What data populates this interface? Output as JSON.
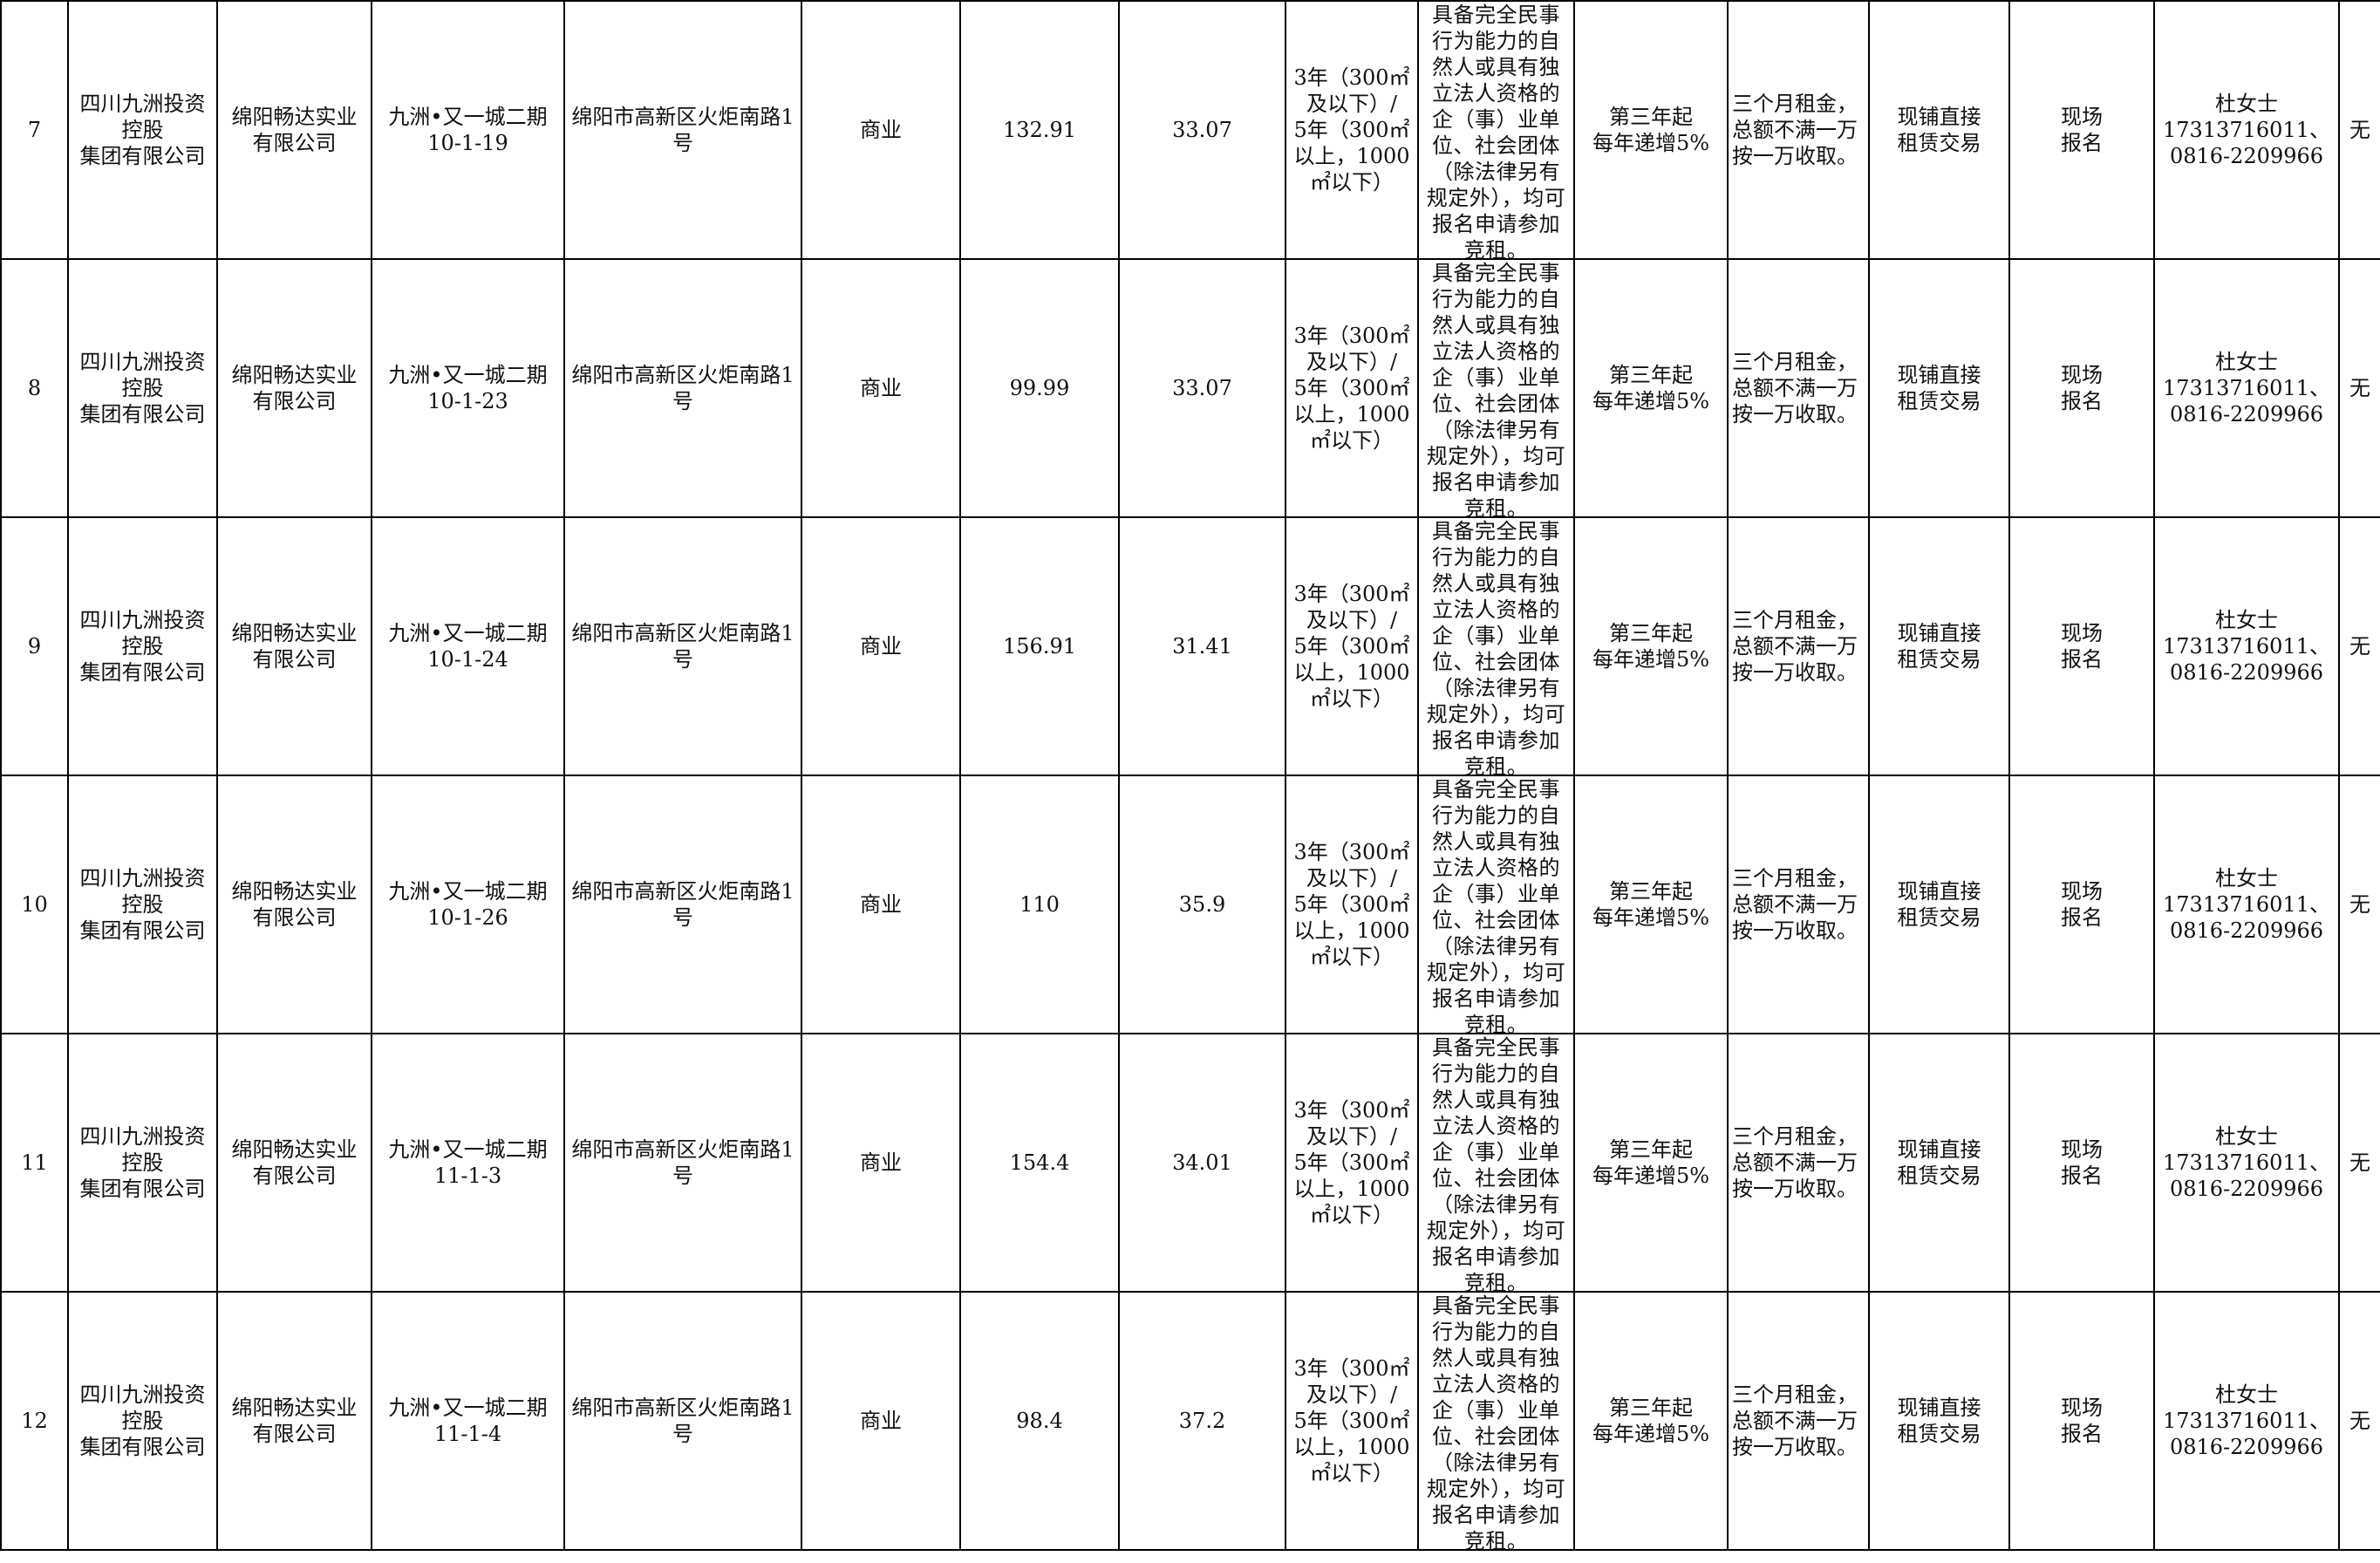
{
  "rows": [
    {
      "no": "7",
      "owner": "四川九洲投资\n控股\n集团有限公司",
      "lessor": "绵阳畅达实业\n有限公司",
      "unit": "九洲•又一城二期\n10-1-19",
      "address": "绵阳市高新区火炬南路1\n号",
      "use": "商业",
      "area": "132.91",
      "price": "33.07",
      "term": "3年（300㎡\n及以下）/\n5年（300㎡\n以上，1000\n㎡以下）",
      "qualification": "具备完全民事行为能力的自然人或具有独立法人资格的企（事）业单位、社会团体（除法律另有规定外），均可报名申请参加竞租。",
      "increase": "第三年起\n每年递增5%",
      "deposit": "三个月租金，\n总额不满一万\n按一万收取。",
      "method": "现铺直接\n租赁交易",
      "signup": "现场\n报名",
      "contact": "杜女士\n17313716011、\n0816-2209966",
      "remark": "无"
    },
    {
      "no": "8",
      "owner": "四川九洲投资\n控股\n集团有限公司",
      "lessor": "绵阳畅达实业\n有限公司",
      "unit": "九洲•又一城二期\n10-1-23",
      "address": "绵阳市高新区火炬南路1\n号",
      "use": "商业",
      "area": "99.99",
      "price": "33.07",
      "term": "3年（300㎡\n及以下）/\n5年（300㎡\n以上，1000\n㎡以下）",
      "qualification": "具备完全民事行为能力的自然人或具有独立法人资格的企（事）业单位、社会团体（除法律另有规定外），均可报名申请参加竞租。",
      "increase": "第三年起\n每年递增5%",
      "deposit": "三个月租金，\n总额不满一万\n按一万收取。",
      "method": "现铺直接\n租赁交易",
      "signup": "现场\n报名",
      "contact": "杜女士\n17313716011、\n0816-2209966",
      "remark": "无"
    },
    {
      "no": "9",
      "owner": "四川九洲投资\n控股\n集团有限公司",
      "lessor": "绵阳畅达实业\n有限公司",
      "unit": "九洲•又一城二期\n10-1-24",
      "address": "绵阳市高新区火炬南路1\n号",
      "use": "商业",
      "area": "156.91",
      "price": "31.41",
      "term": "3年（300㎡\n及以下）/\n5年（300㎡\n以上，1000\n㎡以下）",
      "qualification": "具备完全民事行为能力的自然人或具有独立法人资格的企（事）业单位、社会团体（除法律另有规定外），均可报名申请参加竞租。",
      "increase": "第三年起\n每年递增5%",
      "deposit": "三个月租金，\n总额不满一万\n按一万收取。",
      "method": "现铺直接\n租赁交易",
      "signup": "现场\n报名",
      "contact": "杜女士\n17313716011、\n0816-2209966",
      "remark": "无"
    },
    {
      "no": "10",
      "owner": "四川九洲投资\n控股\n集团有限公司",
      "lessor": "绵阳畅达实业\n有限公司",
      "unit": "九洲•又一城二期\n10-1-26",
      "address": "绵阳市高新区火炬南路1\n号",
      "use": "商业",
      "area": "110",
      "price": "35.9",
      "term": "3年（300㎡\n及以下）/\n5年（300㎡\n以上，1000\n㎡以下）",
      "qualification": "具备完全民事行为能力的自然人或具有独立法人资格的企（事）业单位、社会团体（除法律另有规定外），均可报名申请参加竞租。",
      "increase": "第三年起\n每年递增5%",
      "deposit": "三个月租金，\n总额不满一万\n按一万收取。",
      "method": "现铺直接\n租赁交易",
      "signup": "现场\n报名",
      "contact": "杜女士\n17313716011、\n0816-2209966",
      "remark": "无"
    },
    {
      "no": "11",
      "owner": "四川九洲投资\n控股\n集团有限公司",
      "lessor": "绵阳畅达实业\n有限公司",
      "unit": "九洲•又一城二期\n11-1-3",
      "address": "绵阳市高新区火炬南路1\n号",
      "use": "商业",
      "area": "154.4",
      "price": "34.01",
      "term": "3年（300㎡\n及以下）/\n5年（300㎡\n以上，1000\n㎡以下）",
      "qualification": "具备完全民事行为能力的自然人或具有独立法人资格的企（事）业单位、社会团体（除法律另有规定外），均可报名申请参加竞租。",
      "increase": "第三年起\n每年递增5%",
      "deposit": "三个月租金，\n总额不满一万\n按一万收取。",
      "method": "现铺直接\n租赁交易",
      "signup": "现场\n报名",
      "contact": "杜女士\n17313716011、\n0816-2209966",
      "remark": "无"
    },
    {
      "no": "12",
      "owner": "四川九洲投资\n控股\n集团有限公司",
      "lessor": "绵阳畅达实业\n有限公司",
      "unit": "九洲•又一城二期\n11-1-4",
      "address": "绵阳市高新区火炬南路1\n号",
      "use": "商业",
      "area": "98.4",
      "price": "37.2",
      "term": "3年（300㎡\n及以下）/\n5年（300㎡\n以上，1000\n㎡以下）",
      "qualification": "具备完全民事行为能力的自然人或具有独立法人资格的企（事）业单位、社会团体（除法律另有规定外），均可报名申请参加竞租。",
      "increase": "第三年起\n每年递增5%",
      "deposit": "三个月租金，\n总额不满一万\n按一万收取。",
      "method": "现铺直接\n租赁交易",
      "signup": "现场\n报名",
      "contact": "杜女士\n17313716011、\n0816-2209966",
      "remark": "无"
    }
  ]
}
